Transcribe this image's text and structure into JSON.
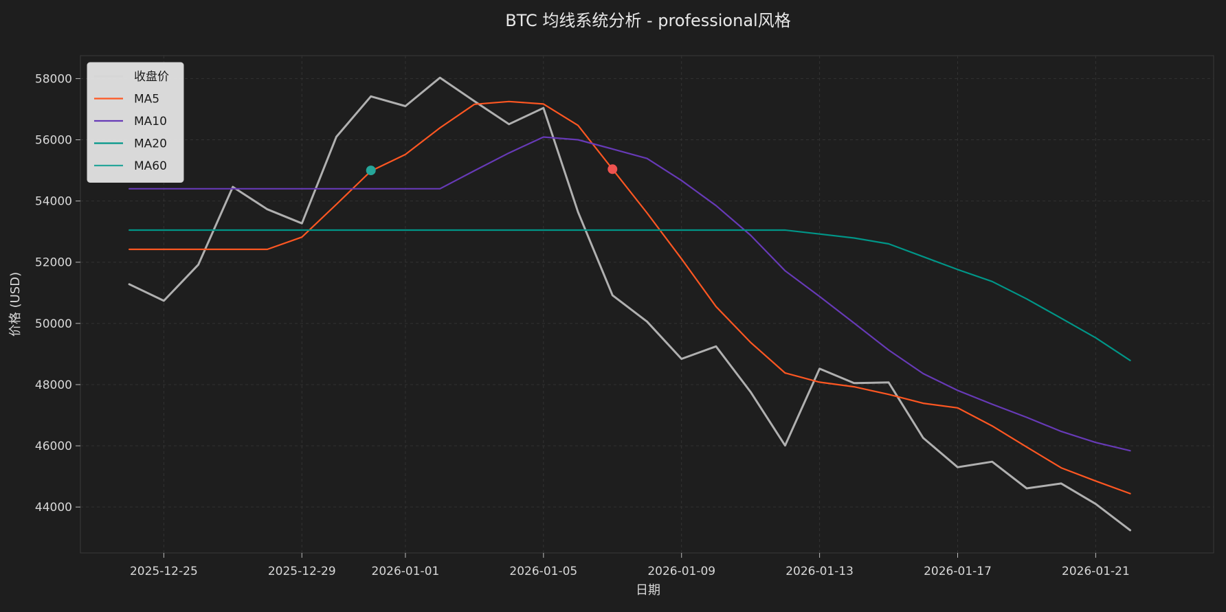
{
  "chart_data": {
    "type": "line",
    "title": "BTC 均线系统分析 - professional风格",
    "xlabel": "日期",
    "ylabel": "价格 (USD)",
    "x_start": "2025-12-24",
    "x_ticks": [
      "2025-12-25",
      "2025-12-29",
      "2026-01-01",
      "2026-01-05",
      "2026-01-09",
      "2026-01-13",
      "2026-01-17",
      "2026-01-21"
    ],
    "x_range": [
      "2025-12-22T14:00",
      "2026-01-24T10:00"
    ],
    "y_ticks": [
      44000,
      46000,
      48000,
      50000,
      52000,
      54000,
      56000,
      58000
    ],
    "ylim": [
      42500,
      58750
    ],
    "grid": true,
    "legend_position": "top-left",
    "series": [
      {
        "name": "收盘价",
        "color": "#b0b0b0",
        "values": [
          51280,
          50740,
          51920,
          54460,
          53730,
          53270,
          56100,
          57420,
          57100,
          58030,
          57260,
          56510,
          57040,
          53640,
          50920,
          50060,
          48840,
          49250,
          47760,
          46010,
          48520,
          48050,
          48070,
          46260,
          45300,
          45480,
          44610,
          44770,
          44100,
          43240
        ]
      },
      {
        "name": "MA5",
        "color": "#ff5722",
        "values": [
          52420,
          52420,
          52420,
          52420,
          52420,
          52820,
          53890,
          54980,
          55520,
          56390,
          57160,
          57250,
          57170,
          56470,
          55040,
          53610,
          52110,
          50550,
          49380,
          48380,
          48080,
          47930,
          47680,
          47390,
          47240,
          46650,
          45960,
          45280,
          44850,
          44440
        ]
      },
      {
        "name": "MA10",
        "color": "#673ab7",
        "values": [
          54400,
          54400,
          54400,
          54400,
          54400,
          54400,
          54400,
          54400,
          54400,
          54400,
          54990,
          55570,
          56090,
          56000,
          55700,
          55390,
          54670,
          53850,
          52880,
          51720,
          50880,
          50010,
          49130,
          48360,
          47810,
          47360,
          46930,
          46470,
          46110,
          45840
        ]
      },
      {
        "name": "MA20",
        "color": "#009688",
        "values": [
          53050,
          53050,
          53050,
          53050,
          53050,
          53050,
          53050,
          53050,
          53050,
          53050,
          53050,
          53050,
          53050,
          53050,
          53050,
          53050,
          53050,
          53050,
          53050,
          53050,
          52920,
          52790,
          52600,
          52180,
          51760,
          51370,
          50800,
          50170,
          49530,
          48790
        ]
      },
      {
        "name": "MA60",
        "color": "#26a69a",
        "values": []
      }
    ],
    "markers": [
      {
        "series_color": "#26a69a",
        "x_index": 7,
        "value": 55000,
        "kind": "golden-cross"
      },
      {
        "series_color": "#ef5350",
        "x_index": 14,
        "value": 55040,
        "kind": "death-cross"
      }
    ]
  }
}
